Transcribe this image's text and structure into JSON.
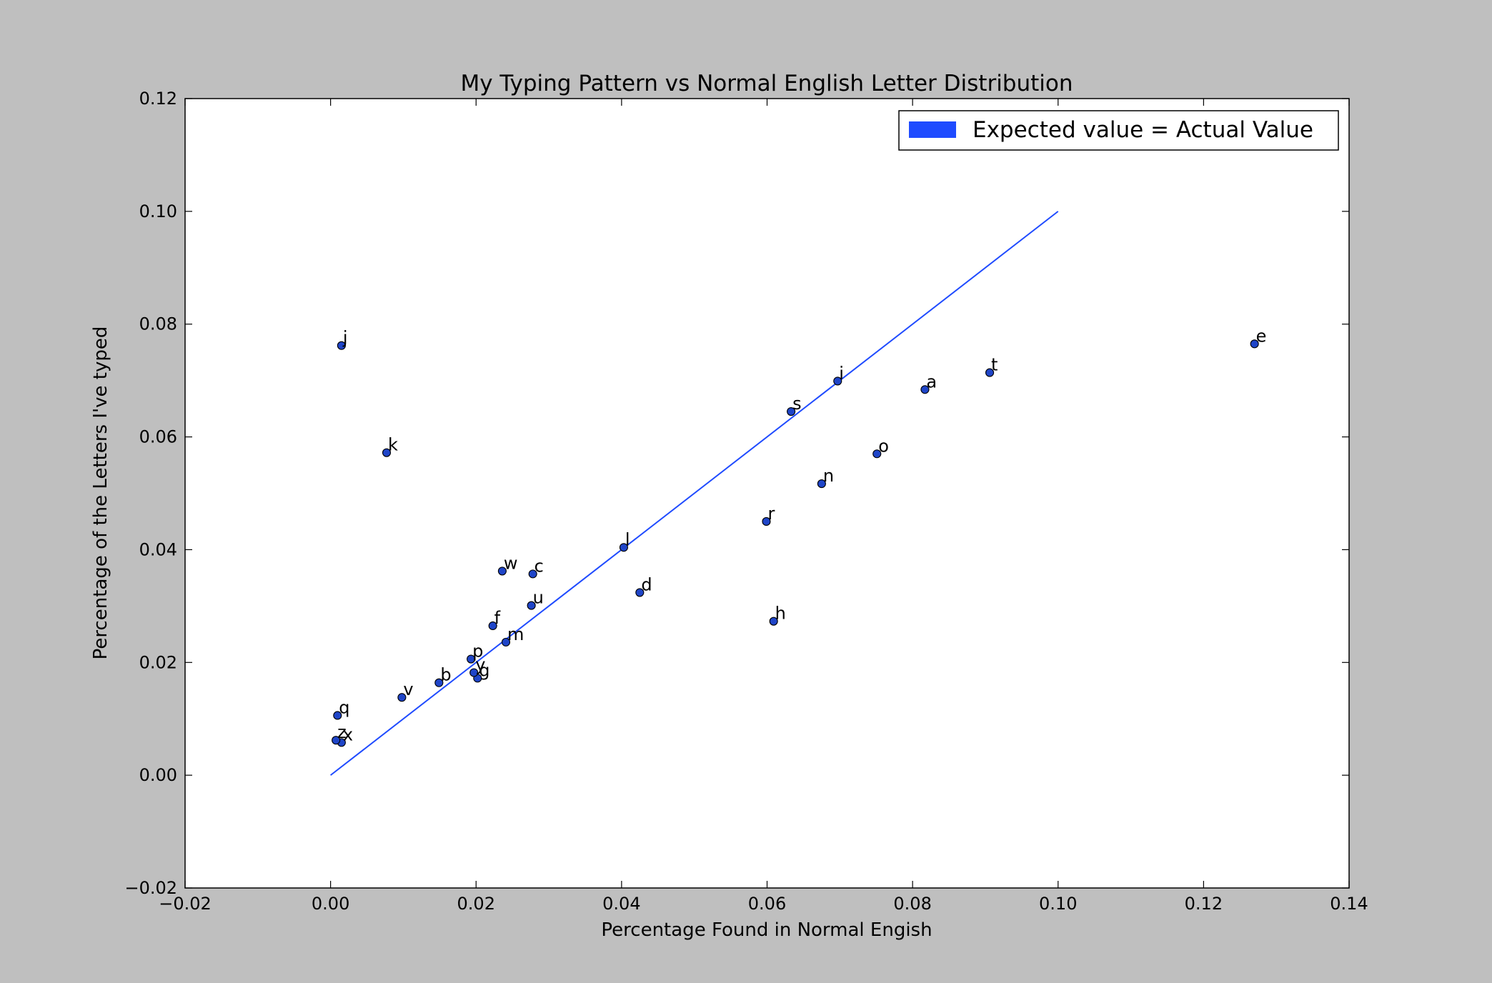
{
  "chart_data": {
    "type": "scatter",
    "title": "My Typing Pattern vs Normal English Letter Distribution",
    "xlabel": "Percentage Found in Normal Engish",
    "ylabel": "Percentage of the Letters I've typed",
    "xlim": [
      -0.02,
      0.14
    ],
    "ylim": [
      -0.02,
      0.12
    ],
    "x_ticks": [
      "−0.02",
      "0.00",
      "0.02",
      "0.04",
      "0.06",
      "0.08",
      "0.10",
      "0.12",
      "0.14"
    ],
    "y_ticks": [
      "−0.02",
      "0.00",
      "0.02",
      "0.04",
      "0.06",
      "0.08",
      "0.10",
      "0.12"
    ],
    "grid": false,
    "legend_position": "top-right",
    "legend": [
      {
        "label": "Expected value = Actual Value",
        "color": "#1f4bff"
      }
    ],
    "reference_line": {
      "label": "Expected value = Actual Value",
      "points": [
        [
          0.0,
          0.0
        ],
        [
          0.1,
          0.1
        ]
      ],
      "color": "#1f4bff"
    },
    "marker_color": "#1f45c8",
    "points": [
      {
        "label": "e",
        "x": 0.127,
        "y": 0.0765
      },
      {
        "label": "t",
        "x": 0.0906,
        "y": 0.0714
      },
      {
        "label": "a",
        "x": 0.0817,
        "y": 0.0684
      },
      {
        "label": "o",
        "x": 0.0751,
        "y": 0.057
      },
      {
        "label": "i",
        "x": 0.0697,
        "y": 0.0699
      },
      {
        "label": "n",
        "x": 0.0675,
        "y": 0.0517
      },
      {
        "label": "s",
        "x": 0.0633,
        "y": 0.0645
      },
      {
        "label": "h",
        "x": 0.0609,
        "y": 0.0273
      },
      {
        "label": "r",
        "x": 0.0599,
        "y": 0.045
      },
      {
        "label": "d",
        "x": 0.0425,
        "y": 0.0324
      },
      {
        "label": "l",
        "x": 0.0403,
        "y": 0.0404
      },
      {
        "label": "c",
        "x": 0.0278,
        "y": 0.0357
      },
      {
        "label": "u",
        "x": 0.0276,
        "y": 0.0301
      },
      {
        "label": "m",
        "x": 0.0241,
        "y": 0.0236
      },
      {
        "label": "w",
        "x": 0.0236,
        "y": 0.0362
      },
      {
        "label": "f",
        "x": 0.0223,
        "y": 0.0265
      },
      {
        "label": "g",
        "x": 0.0202,
        "y": 0.0172
      },
      {
        "label": "y",
        "x": 0.0197,
        "y": 0.0182
      },
      {
        "label": "p",
        "x": 0.0193,
        "y": 0.0206
      },
      {
        "label": "b",
        "x": 0.0149,
        "y": 0.0164
      },
      {
        "label": "v",
        "x": 0.0098,
        "y": 0.0138
      },
      {
        "label": "k",
        "x": 0.0077,
        "y": 0.0572
      },
      {
        "label": "j",
        "x": 0.0015,
        "y": 0.0762
      },
      {
        "label": "x",
        "x": 0.0015,
        "y": 0.0058
      },
      {
        "label": "q",
        "x": 0.00095,
        "y": 0.0106
      },
      {
        "label": "z",
        "x": 0.00074,
        "y": 0.0062
      }
    ]
  }
}
